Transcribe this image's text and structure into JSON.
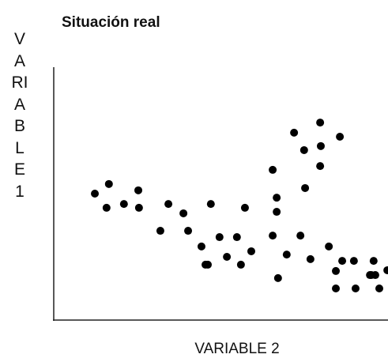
{
  "chart_data": {
    "type": "scatter",
    "title": "Situación real",
    "x_label": "VARIABLE 2",
    "y_label": "VARIABLE 1",
    "xlim": [
      0,
      100
    ],
    "ylim": [
      0,
      100
    ],
    "color": "#000000",
    "x": [
      12.3,
      16.5,
      15.8,
      21.0,
      25.3,
      25.5,
      31.9,
      34.3,
      38.8,
      40.2,
      44.2,
      45.4,
      46.1,
      47.0,
      49.6,
      51.8,
      54.8,
      56.0,
      57.2,
      59.1,
      65.5,
      66.7,
      66.7,
      65.5,
      67.1,
      69.7,
      71.9,
      74.9,
      75.2,
      73.8,
      76.8,
      79.7,
      79.9,
      79.7,
      85.6,
      82.3,
      84.4,
      84.4,
      86.3,
      89.8,
      90.3,
      94.6,
      95.0,
      95.7,
      96.2,
      97.4,
      99.8
    ],
    "values": [
      50.0,
      53.8,
      44.4,
      45.9,
      51.3,
      44.4,
      35.3,
      45.9,
      42.2,
      35.3,
      29.1,
      21.9,
      21.9,
      45.9,
      32.8,
      25.0,
      32.8,
      21.9,
      44.4,
      27.2,
      59.4,
      48.4,
      42.8,
      33.4,
      16.6,
      25.9,
      74.1,
      67.2,
      52.2,
      33.4,
      24.1,
      78.1,
      68.8,
      60.9,
      72.5,
      29.1,
      19.4,
      12.5,
      23.4,
      23.4,
      12.5,
      17.8,
      17.8,
      23.4,
      17.8,
      12.5,
      19.7
    ]
  }
}
